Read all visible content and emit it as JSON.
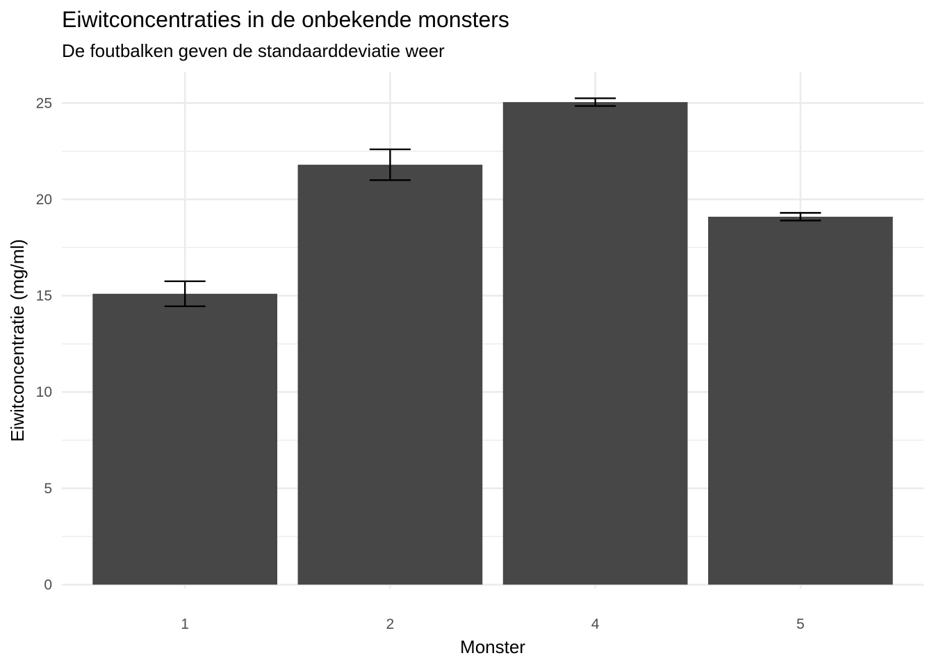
{
  "chart_data": {
    "type": "bar",
    "title": "Eiwitconcentraties in de onbekende monsters",
    "subtitle": "De foutbalken geven de standaarddeviatie weer",
    "xlabel": "Monster",
    "ylabel": "Eiwitconcentratie (mg/ml)",
    "categories": [
      "1",
      "2",
      "4",
      "5"
    ],
    "values": [
      15.1,
      21.8,
      25.05,
      19.1
    ],
    "error_lower": [
      14.45,
      21.0,
      24.85,
      18.9
    ],
    "error_upper": [
      15.75,
      22.6,
      25.25,
      19.3
    ],
    "ylim": [
      -0.2,
      26.6
    ],
    "yticks": [
      0,
      5,
      10,
      15,
      20,
      25
    ],
    "ytick_labels": [
      "0",
      "5",
      "10",
      "15",
      "20",
      "25"
    ],
    "grid": true,
    "legend": "none",
    "colors": {
      "bar": "#474747",
      "error_bar": "#000000",
      "grid": "#ebebeb",
      "tick_text": "#4d4d4d"
    }
  }
}
